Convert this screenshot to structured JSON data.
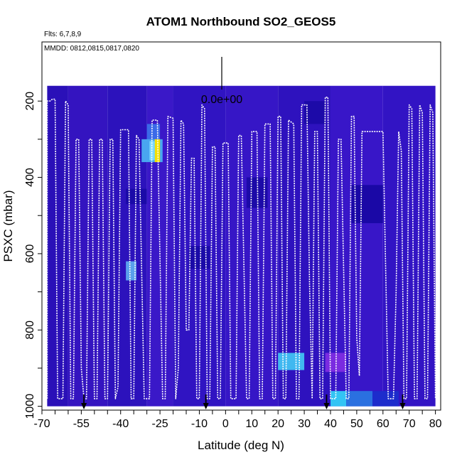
{
  "chart_data": {
    "type": "heatmap",
    "title": "ATOM1 Northbound SO2_GEOS5",
    "subtitle_flights": "Flts: 6,7,8,9",
    "subtitle_dates": "MMDD: 0812,0815,0817,0820",
    "xlabel": "Latitude (deg N)",
    "ylabel": "PSXC (mbar)",
    "xlim": [
      -70,
      82
    ],
    "ylim": [
      1010,
      45
    ],
    "x_ticks": [
      -70,
      -55,
      -40,
      -25,
      -10,
      0,
      10,
      20,
      30,
      40,
      50,
      60,
      70,
      80
    ],
    "y_ticks": [
      200,
      400,
      600,
      800,
      1000
    ],
    "scale_label": "0.0e+00",
    "colors": {
      "background": "#3d14c8",
      "dark": "#1a08a8",
      "light": "#4a2ad8",
      "cyan": "#35c8f0",
      "yellow": "#f4e000",
      "purple": "#7a2be0",
      "track": "#ffffff"
    },
    "color_bands": [
      {
        "x": [
          -68,
          -60
        ],
        "p": [
          160,
          1000
        ],
        "color": "#2a10b8"
      },
      {
        "x": [
          -60,
          -45
        ],
        "p": [
          160,
          1000
        ],
        "color": "#3414c0"
      },
      {
        "x": [
          -45,
          -30
        ],
        "p": [
          160,
          1000
        ],
        "color": "#2c12bc"
      },
      {
        "x": [
          -30,
          -20
        ],
        "p": [
          160,
          1000
        ],
        "color": "#3a18c8"
      },
      {
        "x": [
          -20,
          0
        ],
        "p": [
          160,
          1000
        ],
        "color": "#3014c2"
      },
      {
        "x": [
          0,
          20
        ],
        "p": [
          160,
          1000
        ],
        "color": "#3616c6"
      },
      {
        "x": [
          20,
          40
        ],
        "p": [
          160,
          1000
        ],
        "color": "#2e12be"
      },
      {
        "x": [
          40,
          60
        ],
        "p": [
          160,
          1000
        ],
        "color": "#3816c8"
      },
      {
        "x": [
          60,
          80
        ],
        "p": [
          160,
          1000
        ],
        "color": "#3214c4"
      }
    ],
    "highlights": [
      {
        "x": [
          -30,
          -25
        ],
        "p": [
          260,
          310
        ],
        "color": "#3a6ae8"
      },
      {
        "x": [
          -32,
          -24
        ],
        "p": [
          300,
          360
        ],
        "color": "#49a6f0"
      },
      {
        "x": [
          -27,
          -25
        ],
        "p": [
          300,
          360
        ],
        "color": "#f4e000"
      },
      {
        "x": [
          -29,
          -27
        ],
        "p": [
          305,
          355
        ],
        "color": "#7ad8ff"
      },
      {
        "x": [
          -38,
          -34
        ],
        "p": [
          620,
          670
        ],
        "color": "#5aa0ec"
      },
      {
        "x": [
          -38,
          -30
        ],
        "p": [
          430,
          470
        ],
        "color": "#1a0aa8"
      },
      {
        "x": [
          -14,
          -6
        ],
        "p": [
          580,
          640
        ],
        "color": "#1a0aa8"
      },
      {
        "x": [
          20,
          30
        ],
        "p": [
          860,
          905
        ],
        "color": "#40b8f0"
      },
      {
        "x": [
          38,
          46
        ],
        "p": [
          860,
          910
        ],
        "color": "#7a2be0"
      },
      {
        "x": [
          40,
          46
        ],
        "p": [
          960,
          1000
        ],
        "color": "#33c4f4"
      },
      {
        "x": [
          46,
          56
        ],
        "p": [
          960,
          1000
        ],
        "color": "#2a70e0"
      },
      {
        "x": [
          56,
          66
        ],
        "p": [
          960,
          1000
        ],
        "color": "#1d2ccc"
      },
      {
        "x": [
          8,
          16
        ],
        "p": [
          400,
          480
        ],
        "color": "#1c0aa8"
      },
      {
        "x": [
          30,
          38
        ],
        "p": [
          200,
          260
        ],
        "color": "#1c0aa8"
      },
      {
        "x": [
          48,
          60
        ],
        "p": [
          420,
          520
        ],
        "color": "#1a08a6"
      }
    ],
    "flight_track": [
      [
        -68,
        980
      ],
      [
        -68,
        200
      ],
      [
        -67,
        200
      ],
      [
        -66,
        195
      ],
      [
        -65,
        195
      ],
      [
        -64,
        980
      ],
      [
        -62,
        980
      ],
      [
        -61,
        200
      ],
      [
        -60,
        210
      ],
      [
        -59,
        980
      ],
      [
        -58,
        980
      ],
      [
        -57,
        300
      ],
      [
        -56,
        300
      ],
      [
        -55,
        900
      ],
      [
        -54,
        980
      ],
      [
        -53,
        980
      ],
      [
        -52,
        300
      ],
      [
        -51,
        300
      ],
      [
        -50,
        980
      ],
      [
        -49,
        980
      ],
      [
        -48,
        300
      ],
      [
        -47,
        300
      ],
      [
        -46,
        980
      ],
      [
        -45,
        980
      ],
      [
        -44,
        300
      ],
      [
        -43,
        300
      ],
      [
        -42,
        980
      ],
      [
        -41,
        950
      ],
      [
        -40,
        275
      ],
      [
        -37,
        275
      ],
      [
        -36,
        980
      ],
      [
        -35,
        980
      ],
      [
        -34,
        290
      ],
      [
        -33,
        300
      ],
      [
        -31,
        980
      ],
      [
        -29,
        980
      ],
      [
        -28,
        250
      ],
      [
        -26,
        250
      ],
      [
        -24,
        980
      ],
      [
        -23,
        980
      ],
      [
        -22,
        240
      ],
      [
        -20,
        245
      ],
      [
        -19,
        980
      ],
      [
        -18,
        900
      ],
      [
        -17,
        250
      ],
      [
        -16,
        260
      ],
      [
        -15,
        800
      ],
      [
        -14,
        800
      ],
      [
        -13,
        350
      ],
      [
        -12,
        350
      ],
      [
        -11,
        980
      ],
      [
        -10,
        980
      ],
      [
        -9,
        210
      ],
      [
        -8,
        220
      ],
      [
        -7,
        980
      ],
      [
        -6,
        980
      ],
      [
        -5,
        320
      ],
      [
        -4,
        320
      ],
      [
        -3,
        980
      ],
      [
        -2,
        980
      ],
      [
        -1,
        310
      ],
      [
        1,
        310
      ],
      [
        2,
        980
      ],
      [
        4,
        980
      ],
      [
        5,
        290
      ],
      [
        6,
        290
      ],
      [
        8,
        980
      ],
      [
        9,
        980
      ],
      [
        10,
        280
      ],
      [
        12,
        280
      ],
      [
        13,
        980
      ],
      [
        14,
        980
      ],
      [
        15,
        260
      ],
      [
        17,
        260
      ],
      [
        18,
        980
      ],
      [
        19,
        980
      ],
      [
        20,
        240
      ],
      [
        21,
        240
      ],
      [
        22,
        980
      ],
      [
        23,
        980
      ],
      [
        24,
        250
      ],
      [
        26,
        260
      ],
      [
        27,
        980
      ],
      [
        28,
        980
      ],
      [
        29,
        210
      ],
      [
        31,
        210
      ],
      [
        32,
        680
      ],
      [
        33,
        980
      ],
      [
        34,
        280
      ],
      [
        35,
        280
      ],
      [
        36,
        980
      ],
      [
        37,
        980
      ],
      [
        38,
        190
      ],
      [
        39,
        190
      ],
      [
        40,
        980
      ],
      [
        42,
        980
      ],
      [
        43,
        300
      ],
      [
        44,
        300
      ],
      [
        46,
        980
      ],
      [
        47,
        980
      ],
      [
        48,
        240
      ],
      [
        49,
        240
      ],
      [
        50,
        820
      ],
      [
        51,
        920
      ],
      [
        52,
        280
      ],
      [
        60,
        280
      ],
      [
        62,
        980
      ],
      [
        64,
        980
      ],
      [
        65,
        700
      ],
      [
        66,
        280
      ],
      [
        67,
        330
      ],
      [
        68,
        980
      ],
      [
        69,
        980
      ],
      [
        70,
        210
      ],
      [
        71,
        220
      ],
      [
        72,
        980
      ],
      [
        73,
        980
      ],
      [
        74,
        210
      ],
      [
        75,
        230
      ],
      [
        76,
        980
      ],
      [
        77,
        980
      ],
      [
        78,
        210
      ],
      [
        79,
        230
      ],
      [
        80,
        980
      ]
    ],
    "arrows": [
      -54,
      -7.5,
      38.5,
      67.5
    ]
  }
}
